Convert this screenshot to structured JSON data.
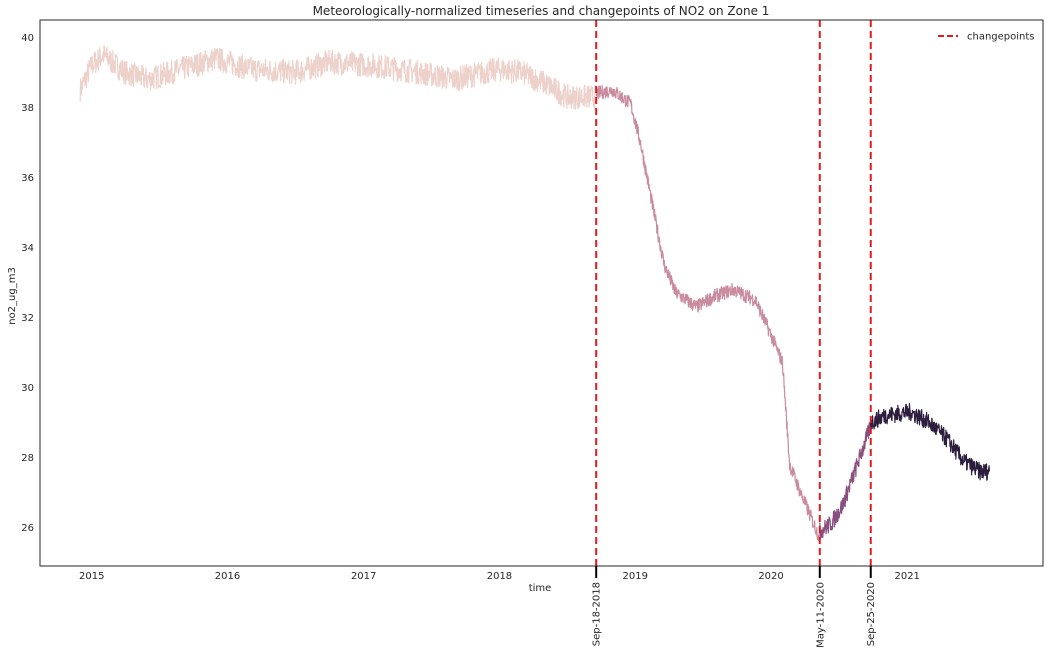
{
  "chart_data": {
    "type": "line",
    "title": "Meteorologically-normalized timeseries and changepoints of NO2 on Zone 1",
    "xlabel": "time",
    "ylabel": "no2_ug_m3",
    "xlim": [
      "2014-08-15",
      "2022-01-01"
    ],
    "ylim": [
      24.9,
      40.5
    ],
    "x_ticks": [
      "2015",
      "2016",
      "2017",
      "2018",
      "2019",
      "2020",
      "2021"
    ],
    "y_ticks": [
      26,
      28,
      30,
      32,
      34,
      36,
      38,
      40
    ],
    "grid": false,
    "legend": {
      "position": "top-right",
      "entries": [
        {
          "label": "changepoints",
          "color": "#e31a1c",
          "style": "dashed"
        }
      ]
    },
    "changepoints": [
      {
        "date": "2018-09-18",
        "label": "Sep-18-2018"
      },
      {
        "date": "2020-05-11",
        "label": "May-11-2020"
      },
      {
        "date": "2020-09-25",
        "label": "Sep-25-2020"
      }
    ],
    "series": [
      {
        "color": "#edd1cb",
        "noise": 0.35,
        "points": [
          [
            "2014-12-01",
            38.5
          ],
          [
            "2015-01-01",
            39.2
          ],
          [
            "2015-02-01",
            39.5
          ],
          [
            "2015-04-01",
            39.0
          ],
          [
            "2015-06-01",
            38.8
          ],
          [
            "2015-09-01",
            39.1
          ],
          [
            "2015-12-01",
            39.4
          ],
          [
            "2016-03-01",
            39.1
          ],
          [
            "2016-07-01",
            39.0
          ],
          [
            "2016-10-01",
            39.3
          ],
          [
            "2017-02-01",
            39.2
          ],
          [
            "2017-06-01",
            39.0
          ],
          [
            "2017-09-01",
            38.8
          ],
          [
            "2018-01-01",
            39.1
          ],
          [
            "2018-03-01",
            39.0
          ],
          [
            "2018-05-01",
            38.7
          ],
          [
            "2018-07-01",
            38.3
          ],
          [
            "2018-09-18",
            38.3
          ]
        ]
      },
      {
        "color": "#c98b9e",
        "noise": 0.2,
        "points": [
          [
            "2018-09-18",
            38.4
          ],
          [
            "2018-11-01",
            38.5
          ],
          [
            "2018-12-20",
            38.1
          ],
          [
            "2019-01-15",
            37.0
          ],
          [
            "2019-02-20",
            35.0
          ],
          [
            "2019-03-20",
            33.5
          ],
          [
            "2019-04-20",
            32.7
          ],
          [
            "2019-06-15",
            32.3
          ],
          [
            "2019-08-01",
            32.6
          ],
          [
            "2019-09-20",
            32.8
          ],
          [
            "2019-11-20",
            32.5
          ],
          [
            "2020-01-01",
            31.5
          ],
          [
            "2020-02-01",
            30.7
          ],
          [
            "2020-02-20",
            27.8
          ],
          [
            "2020-03-20",
            27.0
          ],
          [
            "2020-05-11",
            25.7
          ]
        ]
      },
      {
        "color": "#8a4f7e",
        "noise": 0.25,
        "points": [
          [
            "2020-05-11",
            25.9
          ],
          [
            "2020-06-10",
            26.1
          ],
          [
            "2020-07-10",
            26.6
          ],
          [
            "2020-08-10",
            27.5
          ],
          [
            "2020-09-25",
            28.9
          ]
        ]
      },
      {
        "color": "#2d1e3e",
        "noise": 0.25,
        "points": [
          [
            "2020-09-25",
            29.0
          ],
          [
            "2020-11-01",
            29.2
          ],
          [
            "2021-01-10",
            29.3
          ],
          [
            "2021-03-01",
            29.0
          ],
          [
            "2021-04-20",
            28.5
          ],
          [
            "2021-06-01",
            27.9
          ],
          [
            "2021-07-15",
            27.6
          ],
          [
            "2021-08-10",
            27.6
          ]
        ]
      }
    ]
  }
}
